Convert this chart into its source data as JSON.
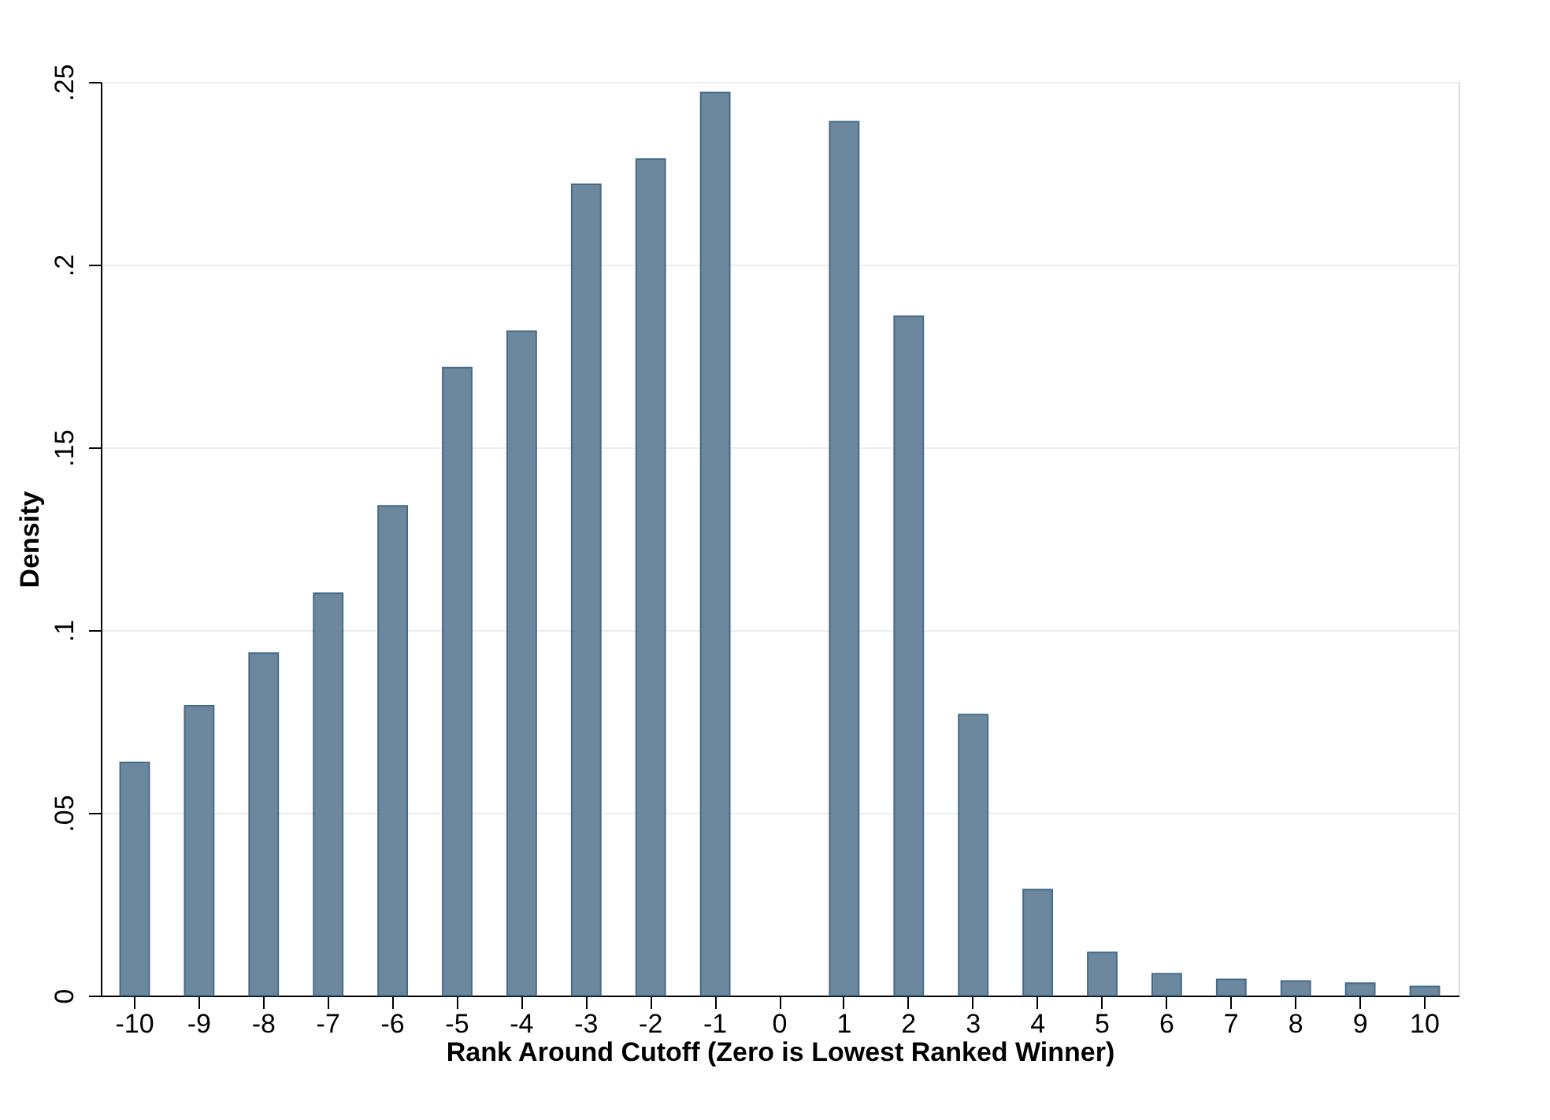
{
  "chart_data": {
    "type": "bar",
    "xlabel": "Rank Around Cutoff (Zero is Lowest Ranked Winner)",
    "ylabel": "Density",
    "categories": [
      "-10",
      "-9",
      "-8",
      "-7",
      "-6",
      "-5",
      "-4",
      "-3",
      "-2",
      "-1",
      "0",
      "1",
      "2",
      "3",
      "4",
      "5",
      "6",
      "7",
      "8",
      "9",
      "10"
    ],
    "series": [
      {
        "color": "#64829a",
        "values": [
          0.0638,
          0.0793,
          0.0937,
          0.1101,
          0.134,
          0.1718,
          0.1818,
          0.222,
          0.2289,
          0.2471,
          null,
          0.2391,
          0.1859,
          0.0769,
          0.029,
          0.0118,
          0.006,
          0.0044,
          0.004,
          0.0034,
          0.0025
        ]
      }
    ],
    "ylim": [
      0,
      0.25
    ],
    "yticks": [
      0,
      {
        "value": 0.05,
        "label": ".05"
      },
      {
        "value": 0.1,
        "label": ".1"
      },
      {
        "value": 0.15,
        "label": ".15"
      },
      {
        "value": 0.2,
        "label": ".2"
      },
      {
        "value": 0.25,
        "label": ".25"
      }
    ],
    "grid": "y"
  }
}
